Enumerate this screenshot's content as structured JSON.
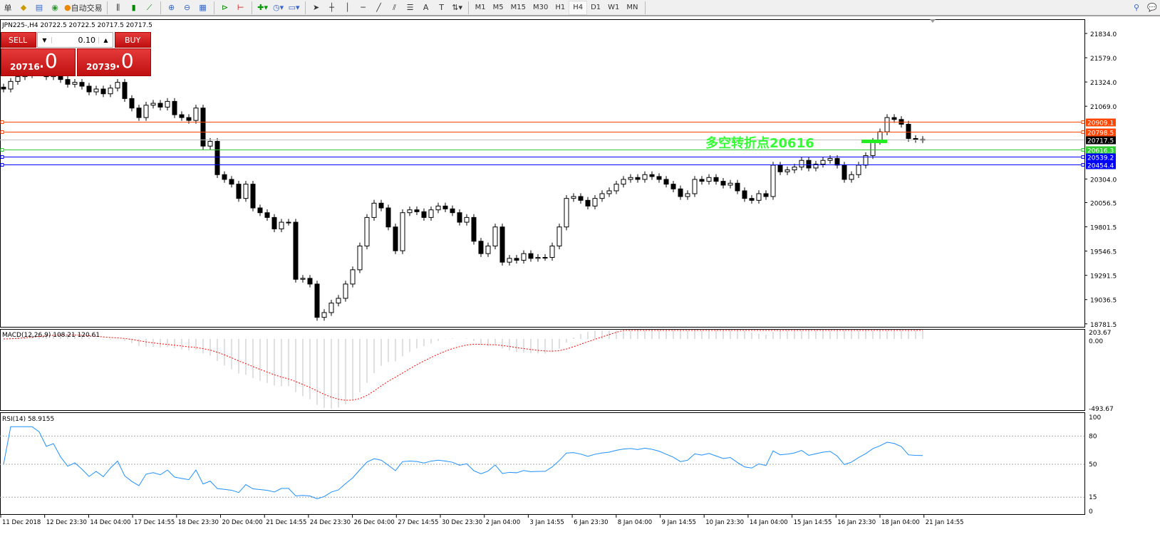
{
  "toolbar": {
    "left_icons": [
      "new-order-icon",
      "market-watch-icon",
      "navigator-icon",
      "signals-icon"
    ],
    "autotrade_label": "自动交易",
    "first_glyph": "单",
    "chart_icons": [
      "bar-chart-icon",
      "candlestick-icon",
      "line-chart-icon",
      "zoom-in-icon",
      "zoom-out-icon",
      "tile-windows-icon",
      "autoscroll-icon",
      "chart-shift-icon",
      "indicators-icon",
      "periods-icon",
      "templates-icon",
      "cursor-icon",
      "crosshair-icon",
      "vertical-line-icon",
      "horizontal-line-icon",
      "trendline-icon",
      "fibonacci-icon",
      "fibo-fan-icon",
      "text-icon",
      "label-icon",
      "arrows-icon"
    ],
    "timeframes": [
      "M1",
      "M5",
      "M15",
      "M30",
      "H1",
      "H4",
      "D1",
      "W1",
      "MN"
    ],
    "active_timeframe": "H4"
  },
  "chart": {
    "header": "JPN225-,H4  20722.5 20722.5 20717.5 20717.5",
    "price_ticks": [
      "21834.0",
      "21579.0",
      "21324.0",
      "21069.0",
      "20304.0",
      "20056.5",
      "19801.5",
      "19546.5",
      "19291.5",
      "19036.5",
      "18781.5"
    ],
    "price_tick_values": [
      21834,
      21579,
      21324,
      21069,
      20304,
      20056.5,
      19801.5,
      19546.5,
      19291.5,
      19036.5,
      18781.5
    ],
    "levels": [
      {
        "label": "20909.1",
        "value": 20909.1,
        "color": "#ff4500"
      },
      {
        "label": "20798.5",
        "value": 20798.5,
        "color": "#ff4500"
      },
      {
        "label": "20717.5",
        "value": 20717.5,
        "color": "#c0c0c0",
        "tag": "#000000"
      },
      {
        "label": "20616.3",
        "value": 20616.3,
        "color": "#32cd32"
      },
      {
        "label": "20539.2",
        "value": 20539.2,
        "color": "#0000ff"
      },
      {
        "label": "20454.4",
        "value": 20454.4,
        "color": "#0000ff"
      }
    ],
    "annotation": "多空转折点20616",
    "annotation_color": "#33ff33",
    "closes": [
      21250,
      21330,
      21380,
      21400,
      21450,
      21420,
      21380,
      21400,
      21350,
      21300,
      21320,
      21280,
      21220,
      21250,
      21200,
      21260,
      21320,
      21150,
      21050,
      20950,
      21080,
      21100,
      21060,
      21120,
      20980,
      20950,
      20920,
      21050,
      20650,
      20700,
      20350,
      20300,
      20250,
      20100,
      20250,
      20000,
      19950,
      19900,
      19780,
      19850,
      19850,
      19250,
      19260,
      19200,
      18850,
      18900,
      19000,
      19050,
      19200,
      19350,
      19600,
      19900,
      20050,
      20000,
      19800,
      19550,
      19950,
      19980,
      19960,
      19900,
      19980,
      20020,
      19990,
      19950,
      19850,
      19900,
      19650,
      19520,
      19600,
      19800,
      19430,
      19470,
      19450,
      19520,
      19470,
      19480,
      19480,
      19600,
      19800,
      20100,
      20120,
      20080,
      20020,
      20100,
      20150,
      20180,
      20250,
      20300,
      20320,
      20300,
      20350,
      20330,
      20300,
      20250,
      20200,
      20120,
      20150,
      20300,
      20280,
      20320,
      20280,
      20240,
      20260,
      20180,
      20100,
      20080,
      20150,
      20120,
      20450,
      20380,
      20400,
      20430,
      20500,
      20420,
      20460,
      20500,
      20520,
      20450,
      20300,
      20350,
      20450,
      20550,
      20700,
      20800,
      20950,
      20930,
      20880,
      20730,
      20720,
      20717.5
    ]
  },
  "trade": {
    "sell_label": "SELL",
    "buy_label": "BUY",
    "lot": "0.10",
    "sell_big": "20716",
    "sell_small": ".0",
    "buy_big": "20739",
    "buy_small": ".0"
  },
  "macd": {
    "label": "MACD(12,26,9) 108.21 120.61",
    "ticks": [
      "203.67",
      "0.00",
      "-493.67"
    ],
    "signal_color": "#ff0000",
    "hist_color": "#c0c0c0"
  },
  "rsi": {
    "label": "RSI(14) 58.9155",
    "ticks": [
      "100",
      "80",
      "50",
      "15",
      "0"
    ],
    "levels": [
      80,
      50,
      15
    ],
    "color": "#1e90ff"
  },
  "time_labels": [
    "11 Dec 2018",
    "12 Dec 23:30",
    "14 Dec 04:00",
    "17 Dec 14:55",
    "18 Dec 23:30",
    "20 Dec 04:00",
    "21 Dec 14:55",
    "24 Dec 23:30",
    "26 Dec 04:00",
    "27 Dec 14:55",
    "30 Dec 23:30",
    "2 Jan 04:00",
    "3 Jan 14:55",
    "6 Jan 23:30",
    "8 Jan 04:00",
    "9 Jan 14:55",
    "10 Jan 23:30",
    "14 Jan 04:00",
    "15 Jan 14:55",
    "16 Jan 23:30",
    "18 Jan 04:00",
    "21 Jan 14:55"
  ]
}
